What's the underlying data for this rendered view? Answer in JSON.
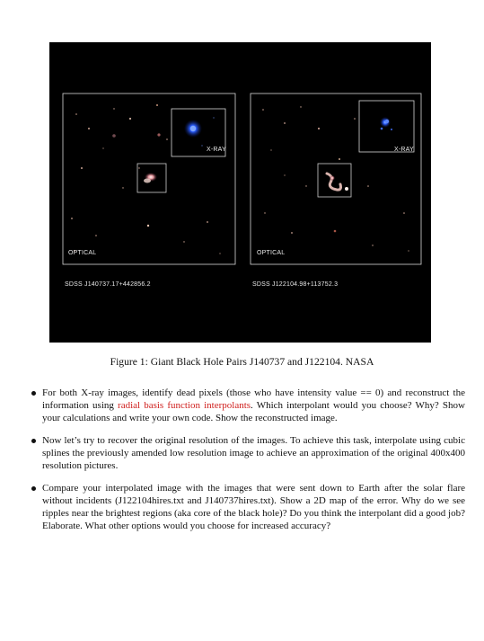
{
  "figure": {
    "left_panel": {
      "xray_label": "X-RAY",
      "optical_label": "OPTICAL",
      "designation": "SDSS J140737.17+442856.2"
    },
    "right_panel": {
      "xray_label": "X-RAY",
      "optical_label": "OPTICAL",
      "designation": "SDSS J122104.98+113752.3"
    },
    "caption": "Figure 1: Giant Black Hole Pairs J140737 and J122104. NASA"
  },
  "bullets": [
    {
      "before": "For both X-ray images, identify dead pixels (those who have intensity value == 0) and reconstruct the information using ",
      "highlight": "radial basis function interpolants",
      "after": ". Which interpolant would you choose? Why? Show your calculations and write your own code. Show the reconstructed image."
    },
    {
      "before": "Now let’s try to recover the original resolution of the images. To achieve this task, interpolate using cubic splines the previously amended low resolution image to achieve an approximation of the original 400x400 resolution pictures.",
      "highlight": "",
      "after": ""
    },
    {
      "before": "Compare your interpolated image with the images that were sent down to Earth after the solar flare without incidents (J122104hires.txt and J140737hires.txt). Show a 2D map of the error. Why do we see ripples near the brightest regions (aka core of the black hole)? Do you think the interpolant did a good job? Elaborate. What other options would you choose for increased accuracy?",
      "highlight": "",
      "after": ""
    }
  ],
  "colors": {
    "highlight": "#d0211f",
    "figure_background": "#000000",
    "xray_blue": "#3a6bff"
  }
}
